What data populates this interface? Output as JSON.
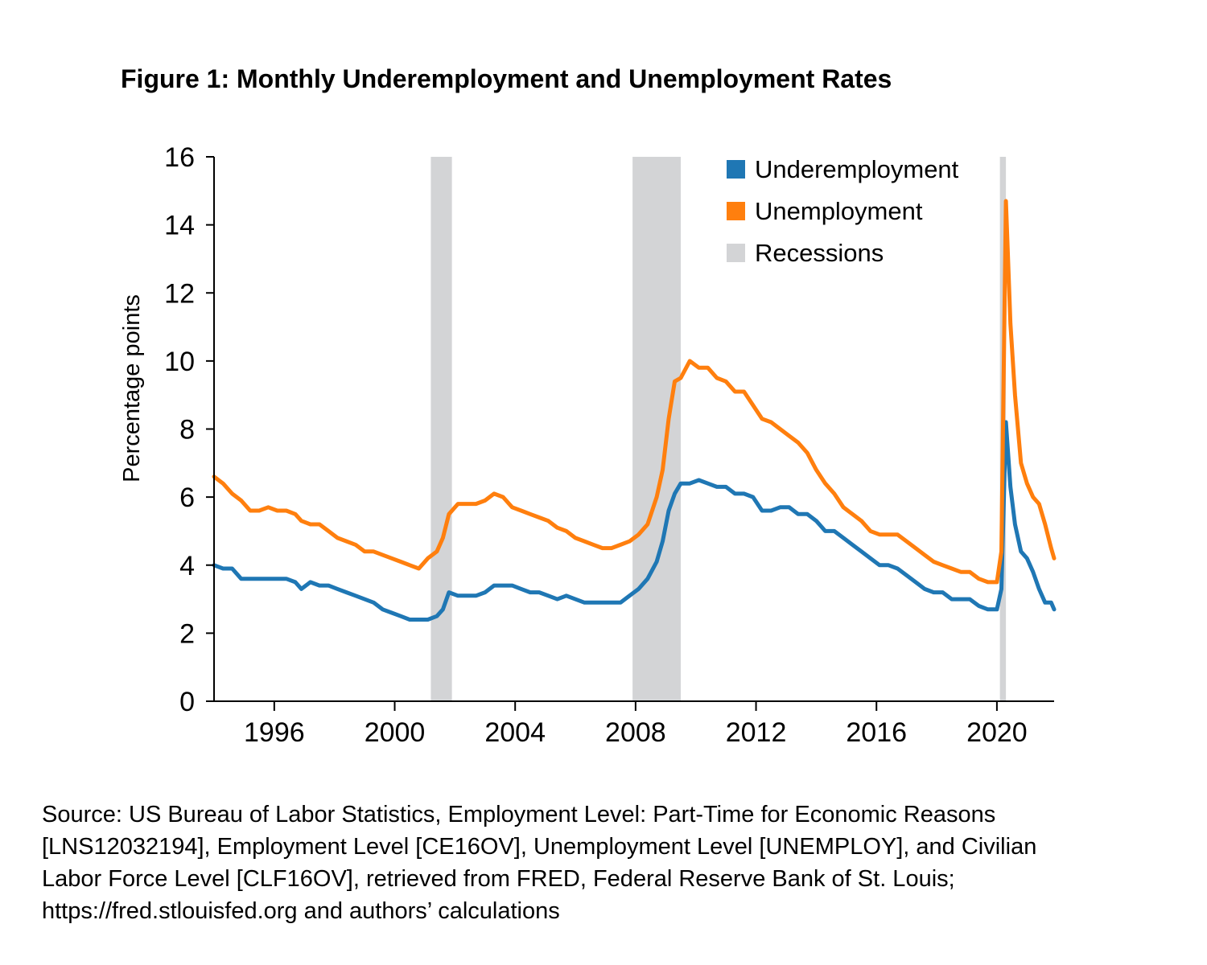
{
  "title": "Figure 1: Monthly Underemployment and Unemployment Rates",
  "colors": {
    "underemployment": "#1f77b4",
    "unemployment": "#ff7f0e",
    "recession": "#d3d4d6"
  },
  "source": {
    "lines": [
      "Source: US Bureau of Labor Statistics, Employment Level: Part-Time for Economic Reasons",
      "[LNS12032194], Employment Level [CE16OV], Unemployment Level [UNEMPLOY], and Civilian",
      "Labor Force Level [CLF16OV], retrieved from FRED, Federal Reserve Bank of St. Louis;",
      "https://fred.stlouisfed.org and authors’ calculations"
    ]
  },
  "chart_data": {
    "type": "line",
    "title": "Figure 1: Monthly Underemployment and Unemployment Rates",
    "xlabel": "",
    "ylabel": "Percentage points",
    "xlim": [
      1994.0,
      2021.9
    ],
    "ylim": [
      0,
      16
    ],
    "yticks": [
      0,
      2,
      4,
      6,
      8,
      10,
      12,
      14,
      16
    ],
    "xticks": [
      1996,
      2000,
      2004,
      2008,
      2012,
      2016,
      2020
    ],
    "grid": false,
    "legend": "top-right",
    "legend_entries": [
      "Underemployment",
      "Unemployment",
      "Recessions"
    ],
    "recessions": [
      {
        "start": 2001.2,
        "end": 2001.9
      },
      {
        "start": 2007.9,
        "end": 2009.5
      },
      {
        "start": 2020.1,
        "end": 2020.3
      }
    ],
    "series": [
      {
        "name": "Underemployment",
        "points": [
          [
            1994.0,
            4.0
          ],
          [
            1994.3,
            3.9
          ],
          [
            1994.6,
            3.9
          ],
          [
            1994.9,
            3.6
          ],
          [
            1995.2,
            3.6
          ],
          [
            1995.5,
            3.6
          ],
          [
            1995.8,
            3.6
          ],
          [
            1996.1,
            3.6
          ],
          [
            1996.4,
            3.6
          ],
          [
            1996.7,
            3.5
          ],
          [
            1996.9,
            3.3
          ],
          [
            1997.2,
            3.5
          ],
          [
            1997.5,
            3.4
          ],
          [
            1997.8,
            3.4
          ],
          [
            1998.1,
            3.3
          ],
          [
            1998.4,
            3.2
          ],
          [
            1998.7,
            3.1
          ],
          [
            1999.0,
            3.0
          ],
          [
            1999.3,
            2.9
          ],
          [
            1999.6,
            2.7
          ],
          [
            1999.9,
            2.6
          ],
          [
            2000.2,
            2.5
          ],
          [
            2000.5,
            2.4
          ],
          [
            2000.8,
            2.4
          ],
          [
            2001.1,
            2.4
          ],
          [
            2001.4,
            2.5
          ],
          [
            2001.6,
            2.7
          ],
          [
            2001.8,
            3.2
          ],
          [
            2002.1,
            3.1
          ],
          [
            2002.4,
            3.1
          ],
          [
            2002.7,
            3.1
          ],
          [
            2003.0,
            3.2
          ],
          [
            2003.3,
            3.4
          ],
          [
            2003.6,
            3.4
          ],
          [
            2003.9,
            3.4
          ],
          [
            2004.2,
            3.3
          ],
          [
            2004.5,
            3.2
          ],
          [
            2004.8,
            3.2
          ],
          [
            2005.1,
            3.1
          ],
          [
            2005.4,
            3.0
          ],
          [
            2005.7,
            3.1
          ],
          [
            2006.0,
            3.0
          ],
          [
            2006.3,
            2.9
          ],
          [
            2006.6,
            2.9
          ],
          [
            2006.9,
            2.9
          ],
          [
            2007.2,
            2.9
          ],
          [
            2007.5,
            2.9
          ],
          [
            2007.8,
            3.1
          ],
          [
            2008.1,
            3.3
          ],
          [
            2008.4,
            3.6
          ],
          [
            2008.7,
            4.1
          ],
          [
            2008.9,
            4.7
          ],
          [
            2009.1,
            5.6
          ],
          [
            2009.3,
            6.1
          ],
          [
            2009.5,
            6.4
          ],
          [
            2009.8,
            6.4
          ],
          [
            2010.1,
            6.5
          ],
          [
            2010.4,
            6.4
          ],
          [
            2010.7,
            6.3
          ],
          [
            2011.0,
            6.3
          ],
          [
            2011.3,
            6.1
          ],
          [
            2011.6,
            6.1
          ],
          [
            2011.9,
            6.0
          ],
          [
            2012.2,
            5.6
          ],
          [
            2012.5,
            5.6
          ],
          [
            2012.8,
            5.7
          ],
          [
            2013.1,
            5.7
          ],
          [
            2013.4,
            5.5
          ],
          [
            2013.7,
            5.5
          ],
          [
            2014.0,
            5.3
          ],
          [
            2014.3,
            5.0
          ],
          [
            2014.6,
            5.0
          ],
          [
            2014.9,
            4.8
          ],
          [
            2015.2,
            4.6
          ],
          [
            2015.5,
            4.4
          ],
          [
            2015.8,
            4.2
          ],
          [
            2016.1,
            4.0
          ],
          [
            2016.4,
            4.0
          ],
          [
            2016.7,
            3.9
          ],
          [
            2017.0,
            3.7
          ],
          [
            2017.3,
            3.5
          ],
          [
            2017.6,
            3.3
          ],
          [
            2017.9,
            3.2
          ],
          [
            2018.2,
            3.2
          ],
          [
            2018.5,
            3.0
          ],
          [
            2018.8,
            3.0
          ],
          [
            2019.1,
            3.0
          ],
          [
            2019.4,
            2.8
          ],
          [
            2019.7,
            2.7
          ],
          [
            2020.0,
            2.7
          ],
          [
            2020.15,
            3.3
          ],
          [
            2020.3,
            8.2
          ],
          [
            2020.45,
            6.3
          ],
          [
            2020.6,
            5.2
          ],
          [
            2020.8,
            4.4
          ],
          [
            2021.0,
            4.2
          ],
          [
            2021.2,
            3.8
          ],
          [
            2021.4,
            3.3
          ],
          [
            2021.6,
            2.9
          ],
          [
            2021.8,
            2.9
          ],
          [
            2021.9,
            2.7
          ]
        ]
      },
      {
        "name": "Unemployment",
        "points": [
          [
            1994.0,
            6.6
          ],
          [
            1994.3,
            6.4
          ],
          [
            1994.6,
            6.1
          ],
          [
            1994.9,
            5.9
          ],
          [
            1995.2,
            5.6
          ],
          [
            1995.5,
            5.6
          ],
          [
            1995.8,
            5.7
          ],
          [
            1996.1,
            5.6
          ],
          [
            1996.4,
            5.6
          ],
          [
            1996.7,
            5.5
          ],
          [
            1996.9,
            5.3
          ],
          [
            1997.2,
            5.2
          ],
          [
            1997.5,
            5.2
          ],
          [
            1997.8,
            5.0
          ],
          [
            1998.1,
            4.8
          ],
          [
            1998.4,
            4.7
          ],
          [
            1998.7,
            4.6
          ],
          [
            1999.0,
            4.4
          ],
          [
            1999.3,
            4.4
          ],
          [
            1999.6,
            4.3
          ],
          [
            1999.9,
            4.2
          ],
          [
            2000.2,
            4.1
          ],
          [
            2000.5,
            4.0
          ],
          [
            2000.8,
            3.9
          ],
          [
            2001.1,
            4.2
          ],
          [
            2001.4,
            4.4
          ],
          [
            2001.6,
            4.8
          ],
          [
            2001.8,
            5.5
          ],
          [
            2002.1,
            5.8
          ],
          [
            2002.4,
            5.8
          ],
          [
            2002.7,
            5.8
          ],
          [
            2003.0,
            5.9
          ],
          [
            2003.3,
            6.1
          ],
          [
            2003.6,
            6.0
          ],
          [
            2003.9,
            5.7
          ],
          [
            2004.2,
            5.6
          ],
          [
            2004.5,
            5.5
          ],
          [
            2004.8,
            5.4
          ],
          [
            2005.1,
            5.3
          ],
          [
            2005.4,
            5.1
          ],
          [
            2005.7,
            5.0
          ],
          [
            2006.0,
            4.8
          ],
          [
            2006.3,
            4.7
          ],
          [
            2006.6,
            4.6
          ],
          [
            2006.9,
            4.5
          ],
          [
            2007.2,
            4.5
          ],
          [
            2007.5,
            4.6
          ],
          [
            2007.8,
            4.7
          ],
          [
            2008.1,
            4.9
          ],
          [
            2008.4,
            5.2
          ],
          [
            2008.7,
            6.0
          ],
          [
            2008.9,
            6.8
          ],
          [
            2009.1,
            8.3
          ],
          [
            2009.3,
            9.4
          ],
          [
            2009.5,
            9.5
          ],
          [
            2009.8,
            10.0
          ],
          [
            2010.1,
            9.8
          ],
          [
            2010.4,
            9.8
          ],
          [
            2010.7,
            9.5
          ],
          [
            2011.0,
            9.4
          ],
          [
            2011.3,
            9.1
          ],
          [
            2011.6,
            9.1
          ],
          [
            2011.9,
            8.7
          ],
          [
            2012.2,
            8.3
          ],
          [
            2012.5,
            8.2
          ],
          [
            2012.8,
            8.0
          ],
          [
            2013.1,
            7.8
          ],
          [
            2013.4,
            7.6
          ],
          [
            2013.7,
            7.3
          ],
          [
            2014.0,
            6.8
          ],
          [
            2014.3,
            6.4
          ],
          [
            2014.6,
            6.1
          ],
          [
            2014.9,
            5.7
          ],
          [
            2015.2,
            5.5
          ],
          [
            2015.5,
            5.3
          ],
          [
            2015.8,
            5.0
          ],
          [
            2016.1,
            4.9
          ],
          [
            2016.4,
            4.9
          ],
          [
            2016.7,
            4.9
          ],
          [
            2017.0,
            4.7
          ],
          [
            2017.3,
            4.5
          ],
          [
            2017.6,
            4.3
          ],
          [
            2017.9,
            4.1
          ],
          [
            2018.2,
            4.0
          ],
          [
            2018.5,
            3.9
          ],
          [
            2018.8,
            3.8
          ],
          [
            2019.1,
            3.8
          ],
          [
            2019.4,
            3.6
          ],
          [
            2019.7,
            3.5
          ],
          [
            2020.0,
            3.5
          ],
          [
            2020.15,
            4.4
          ],
          [
            2020.3,
            14.7
          ],
          [
            2020.45,
            11.1
          ],
          [
            2020.6,
            9.0
          ],
          [
            2020.8,
            7.0
          ],
          [
            2021.0,
            6.4
          ],
          [
            2021.2,
            6.0
          ],
          [
            2021.4,
            5.8
          ],
          [
            2021.6,
            5.2
          ],
          [
            2021.8,
            4.5
          ],
          [
            2021.9,
            4.2
          ]
        ]
      }
    ]
  }
}
